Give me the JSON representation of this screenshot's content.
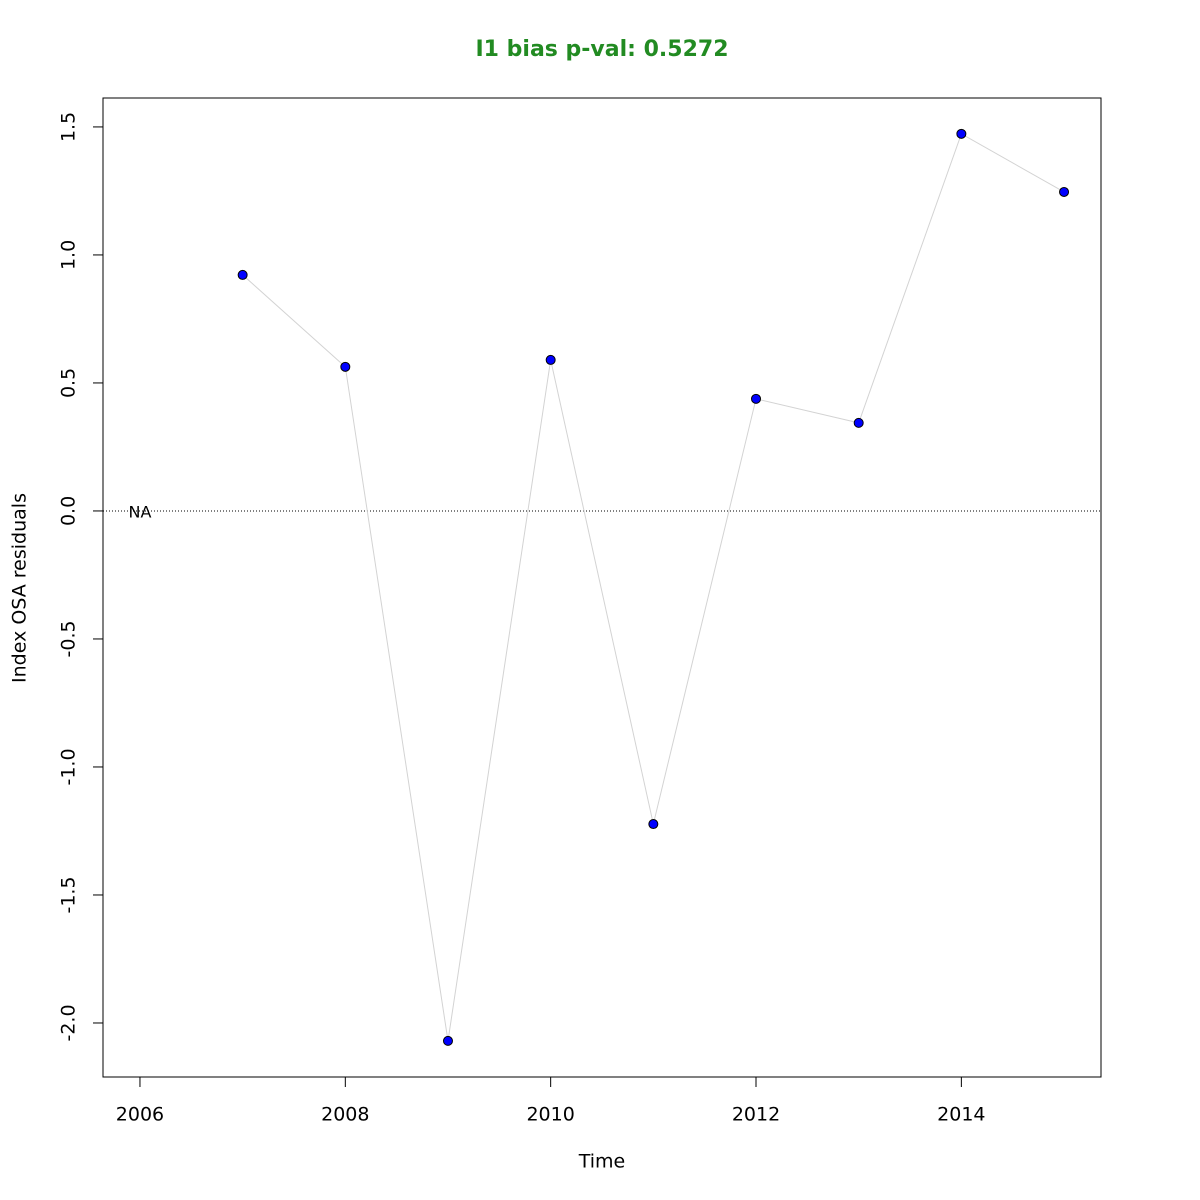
{
  "chart_data": {
    "type": "line",
    "title": "I1 bias p-val: 0.5272",
    "title_color": "#228b22",
    "x_label": "Time",
    "y_label": "Index OSA residuals",
    "x": [
      2006,
      2007,
      2008,
      2009,
      2010,
      2011,
      2012,
      2013,
      2014,
      2015
    ],
    "series": [
      {
        "line_color": "#d3d3d3",
        "color": "#0000ff",
        "values": [
          null,
          0.922,
          0.563,
          -2.07,
          0.59,
          -1.223,
          0.438,
          0.344,
          1.473,
          1.246
        ]
      }
    ],
    "xlim": [
      2005.64,
      2015.36
    ],
    "xticks": [
      2006,
      2008,
      2010,
      2012,
      2014
    ],
    "ylim": [
      -2.211,
      1.613
    ],
    "yticks": [
      {
        "value": -2,
        "label": "-2.0"
      },
      -1.5,
      {
        "value": -1,
        "label": "-1.0"
      },
      -0.5,
      {
        "value": 0,
        "label": "0.0"
      },
      0.5,
      {
        "value": 1,
        "label": "1.0"
      },
      1.5
    ],
    "hline": 0,
    "annotations": [
      {
        "text": "NA",
        "x": 2006,
        "y": 0
      }
    ]
  }
}
